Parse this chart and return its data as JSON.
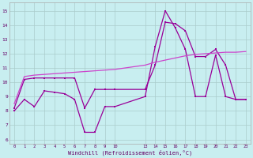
{
  "background_color": "#c8eef0",
  "grid_color": "#aacccc",
  "line_color": "#990099",
  "xlabel": "Windchill (Refroidissement éolien,°C)",
  "x_ticks": [
    0,
    1,
    2,
    3,
    4,
    5,
    6,
    7,
    8,
    9,
    10,
    13,
    14,
    15,
    16,
    17,
    18,
    19,
    20,
    21,
    22,
    23
  ],
  "y_ticks": [
    6,
    7,
    8,
    9,
    10,
    11,
    12,
    13,
    14,
    15
  ],
  "ylim": [
    5.7,
    15.6
  ],
  "xlim": [
    -0.5,
    23.5
  ],
  "line1_x": [
    0,
    1,
    2,
    3,
    4,
    5,
    6,
    7,
    8,
    9,
    10,
    13,
    14,
    15,
    16,
    17,
    18,
    19,
    20,
    21,
    22,
    23
  ],
  "line1_y": [
    8.0,
    8.8,
    8.3,
    9.4,
    9.3,
    9.2,
    8.8,
    6.5,
    6.5,
    8.3,
    8.3,
    9.0,
    12.5,
    15.0,
    13.8,
    12.3,
    9.0,
    9.0,
    11.9,
    9.0,
    8.8,
    8.8
  ],
  "line2_x": [
    0,
    1,
    2,
    3,
    4,
    5,
    6,
    7,
    8,
    9,
    10,
    13,
    14,
    15,
    16,
    17,
    18,
    19,
    20,
    21,
    22,
    23
  ],
  "line2_y": [
    8.2,
    10.2,
    10.3,
    10.3,
    10.3,
    10.3,
    10.3,
    8.2,
    9.5,
    9.5,
    9.5,
    9.5,
    11.2,
    14.2,
    14.1,
    13.6,
    11.8,
    11.8,
    12.3,
    11.2,
    8.8,
    8.8
  ],
  "line3_x": [
    0,
    1,
    2,
    3,
    4,
    5,
    6,
    7,
    8,
    9,
    10,
    13,
    14,
    15,
    16,
    17,
    18,
    19,
    20,
    21,
    22,
    23
  ],
  "line3_y": [
    8.5,
    10.4,
    10.5,
    10.55,
    10.6,
    10.65,
    10.7,
    10.75,
    10.8,
    10.85,
    10.9,
    11.2,
    11.4,
    11.55,
    11.7,
    11.85,
    11.95,
    12.0,
    12.05,
    12.1,
    12.1,
    12.15
  ]
}
